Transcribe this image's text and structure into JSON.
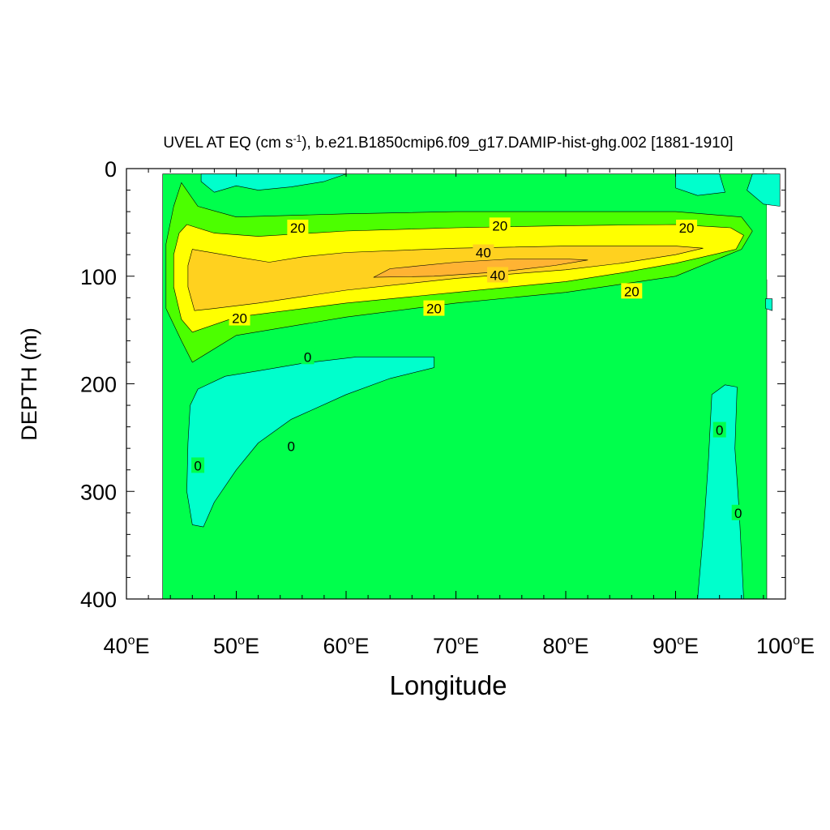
{
  "chart_data": {
    "type": "heatmap",
    "subtype": "filled-contour",
    "title_parts": {
      "pre": "UVEL AT EQ (cm s",
      "sup": "-1",
      "post": "), b.e21.B1850cmip6.f09_g17.DAMIP-hist-ghg.002 [1881-1910]"
    },
    "xlabel": "Longitude",
    "ylabel": "DEPTH (m)",
    "xlim": [
      40,
      100
    ],
    "ylim": [
      0,
      400
    ],
    "y_inverted": true,
    "x_ticks": [
      {
        "value": 40,
        "num": "40",
        "deg": "o",
        "suffix": "E"
      },
      {
        "value": 50,
        "num": "50",
        "deg": "o",
        "suffix": "E"
      },
      {
        "value": 60,
        "num": "60",
        "deg": "o",
        "suffix": "E"
      },
      {
        "value": 70,
        "num": "70",
        "deg": "o",
        "suffix": "E"
      },
      {
        "value": 80,
        "num": "80",
        "deg": "o",
        "suffix": "E"
      },
      {
        "value": 90,
        "num": "90",
        "deg": "o",
        "suffix": "E"
      },
      {
        "value": 100,
        "num": "100",
        "deg": "o",
        "suffix": "E"
      }
    ],
    "y_ticks": [
      {
        "value": 0,
        "label": "0"
      },
      {
        "value": 100,
        "label": "100"
      },
      {
        "value": 200,
        "label": "200"
      },
      {
        "value": 300,
        "label": "300"
      },
      {
        "value": 400,
        "label": "400"
      }
    ],
    "level_colors": {
      "lt0": "#00ffcc",
      "0to10": "#00ff4c",
      "10to20": "#4cff00",
      "20to30": "#ffff00",
      "30to40": "#ffd11f",
      "gt40": "#ffb333",
      "nodata": "#ffffff"
    },
    "regions": [
      {
        "level": "0to10",
        "points": [
          [
            43.3,
            5
          ],
          [
            98.3,
            5
          ],
          [
            98.3,
            400
          ],
          [
            43.3,
            400
          ]
        ]
      },
      {
        "level": "nodata",
        "points": [
          [
            98.3,
            5
          ],
          [
            99.5,
            5
          ],
          [
            99.5,
            103
          ],
          [
            98.3,
            103
          ]
        ]
      },
      {
        "level": "lt0",
        "points": [
          [
            46.8,
            5
          ],
          [
            60,
            5
          ],
          [
            58,
            12
          ],
          [
            55,
            17
          ],
          [
            52,
            20
          ],
          [
            50,
            16
          ],
          [
            48,
            22
          ],
          [
            46.8,
            12
          ]
        ]
      },
      {
        "level": "lt0",
        "points": [
          [
            90,
            5
          ],
          [
            94,
            5
          ],
          [
            94.5,
            22
          ],
          [
            92,
            25
          ],
          [
            90,
            18
          ]
        ]
      },
      {
        "level": "lt0",
        "points": [
          [
            97,
            5
          ],
          [
            99.5,
            5
          ],
          [
            99.5,
            35
          ],
          [
            98,
            33
          ],
          [
            96.5,
            20
          ]
        ]
      },
      {
        "level": "lt0",
        "points": [
          [
            98.2,
            121
          ],
          [
            98.8,
            121
          ],
          [
            98.8,
            132
          ],
          [
            98.2,
            130
          ]
        ]
      },
      {
        "level": "10to20",
        "points": [
          [
            45,
            13
          ],
          [
            46.5,
            35
          ],
          [
            50,
            45
          ],
          [
            60,
            42
          ],
          [
            70,
            40
          ],
          [
            80,
            40
          ],
          [
            90,
            40
          ],
          [
            96,
            45
          ],
          [
            97,
            58
          ],
          [
            96,
            75
          ],
          [
            90,
            100
          ],
          [
            80,
            115
          ],
          [
            70,
            125
          ],
          [
            60,
            138
          ],
          [
            50,
            155
          ],
          [
            46,
            180
          ],
          [
            45,
            160
          ],
          [
            43.6,
            130
          ],
          [
            43.6,
            70
          ],
          [
            44.3,
            35
          ]
        ]
      },
      {
        "level": "20to30",
        "points": [
          [
            45.5,
            52
          ],
          [
            48,
            60
          ],
          [
            52,
            63
          ],
          [
            60,
            58
          ],
          [
            70,
            55
          ],
          [
            80,
            53
          ],
          [
            90,
            52
          ],
          [
            95,
            55
          ],
          [
            96.2,
            62
          ],
          [
            95.5,
            75
          ],
          [
            90,
            88
          ],
          [
            85,
            97
          ],
          [
            80,
            105
          ],
          [
            70,
            115
          ],
          [
            60,
            125
          ],
          [
            50,
            138
          ],
          [
            46,
            152
          ],
          [
            45,
            140
          ],
          [
            44.3,
            110
          ],
          [
            44.3,
            80
          ],
          [
            44.8,
            60
          ]
        ]
      },
      {
        "level": "30to40",
        "points": [
          [
            46,
            75
          ],
          [
            50,
            82
          ],
          [
            53,
            87
          ],
          [
            56,
            82
          ],
          [
            60,
            78
          ],
          [
            70,
            74
          ],
          [
            80,
            72
          ],
          [
            90,
            72
          ],
          [
            92.5,
            74
          ],
          [
            90,
            80
          ],
          [
            85,
            88
          ],
          [
            80,
            94
          ],
          [
            70,
            102
          ],
          [
            60,
            113
          ],
          [
            52,
            125
          ],
          [
            48,
            130
          ],
          [
            46.2,
            132
          ],
          [
            45.6,
            110
          ],
          [
            45.6,
            90
          ]
        ]
      },
      {
        "level": "gt40",
        "points": [
          [
            62.5,
            101
          ],
          [
            64,
            93
          ],
          [
            70,
            87
          ],
          [
            75,
            84
          ],
          [
            80,
            84
          ],
          [
            82,
            85
          ],
          [
            79,
            90
          ],
          [
            74,
            96
          ],
          [
            68,
            100
          ]
        ]
      },
      {
        "level": "lt0",
        "points": [
          [
            46.5,
            205
          ],
          [
            49,
            193
          ],
          [
            52,
            188
          ],
          [
            56,
            181
          ],
          [
            61,
            175
          ],
          [
            68,
            175
          ],
          [
            68,
            185
          ],
          [
            64,
            195
          ],
          [
            60,
            210
          ],
          [
            55,
            233
          ],
          [
            52,
            255
          ],
          [
            50,
            280
          ],
          [
            48,
            310
          ],
          [
            47,
            333
          ],
          [
            46,
            331
          ],
          [
            45.5,
            300
          ],
          [
            45.6,
            255
          ],
          [
            45.8,
            220
          ]
        ]
      },
      {
        "level": "lt0",
        "points": [
          [
            93.3,
            210
          ],
          [
            94.5,
            201
          ],
          [
            95.6,
            203
          ],
          [
            95.4,
            260
          ],
          [
            95.8,
            320
          ],
          [
            96.2,
            400
          ],
          [
            92,
            400
          ],
          [
            92.6,
            330
          ],
          [
            93,
            270
          ]
        ]
      }
    ],
    "contour_labels": [
      {
        "x": 55.6,
        "y": 55,
        "text": "20"
      },
      {
        "x": 74.0,
        "y": 53,
        "text": "20"
      },
      {
        "x": 91.0,
        "y": 55,
        "text": "20"
      },
      {
        "x": 72.5,
        "y": 78,
        "text": "40"
      },
      {
        "x": 73.8,
        "y": 99,
        "text": "40"
      },
      {
        "x": 86.0,
        "y": 114,
        "text": "20"
      },
      {
        "x": 68.0,
        "y": 130,
        "text": "20"
      },
      {
        "x": 50.3,
        "y": 139,
        "text": "20"
      },
      {
        "x": 56.5,
        "y": 175,
        "text": "0"
      },
      {
        "x": 55.0,
        "y": 258,
        "text": "0"
      },
      {
        "x": 46.5,
        "y": 276,
        "text": "0"
      },
      {
        "x": 94.0,
        "y": 243,
        "text": "0"
      },
      {
        "x": 95.7,
        "y": 320,
        "text": "0"
      }
    ]
  }
}
